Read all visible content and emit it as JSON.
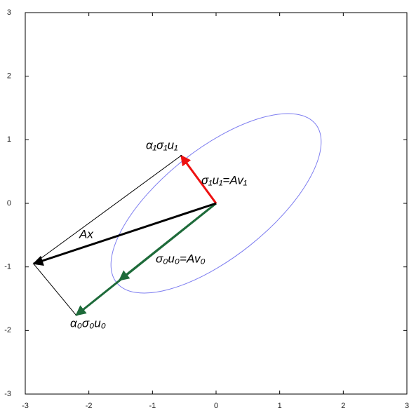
{
  "chart_data": {
    "type": "vector",
    "xlim": [
      -3,
      3
    ],
    "ylim": [
      -3,
      3
    ],
    "xticks": [
      -3,
      -2,
      -1,
      0,
      1,
      2,
      3
    ],
    "yticks": [
      -3,
      -2,
      -1,
      0,
      1,
      2,
      3
    ],
    "ellipse": {
      "a": 2.0,
      "b": 0.85,
      "angle": 38.5,
      "color": "#7d7df0"
    },
    "vectors": [
      {
        "name": "α₀σ₀u₀",
        "x": -2.2,
        "y": -1.76,
        "color": "#1e6b3a"
      },
      {
        "name": "σ₀u₀=Av₀",
        "x": -1.52,
        "y": -1.21,
        "color": "#1e6b3a"
      },
      {
        "name": "σ₁u₁=Av₁",
        "x": -0.55,
        "y": 0.75,
        "color": "#ee1111"
      },
      {
        "name": "α₁σ₁u₁",
        "x": -0.55,
        "y": 0.75,
        "color": "#000000"
      },
      {
        "name": "Ax",
        "x": -2.87,
        "y": -0.95,
        "color": "#000000"
      }
    ]
  }
}
